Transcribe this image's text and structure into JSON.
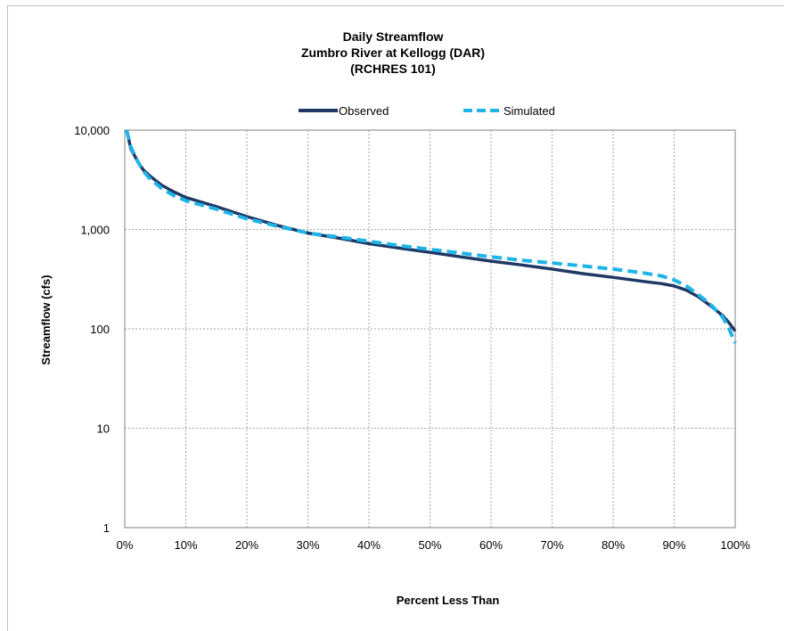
{
  "chart_data": {
    "type": "line",
    "title": [
      "Daily Streamflow",
      "Zumbro River at Kellogg (DAR)",
      "(RCHRES 101)"
    ],
    "xlabel": "Percent Less Than",
    "ylabel": "Streamflow (cfs)",
    "xlim": [
      0,
      100
    ],
    "ylim": [
      1,
      10000
    ],
    "yscale": "log",
    "grid": true,
    "legend_position": "top",
    "x_ticks": [
      "0%",
      "10%",
      "20%",
      "30%",
      "40%",
      "50%",
      "60%",
      "70%",
      "80%",
      "90%",
      "100%"
    ],
    "y_ticks": [
      "1",
      "10",
      "100",
      "1,000",
      "10,000"
    ],
    "y_tick_values": [
      1,
      10,
      100,
      1000,
      10000
    ],
    "series": [
      {
        "name": "Observed",
        "color": "#1f3864",
        "style": "solid",
        "x": [
          0.3,
          1,
          2,
          3,
          4,
          6,
          8,
          10,
          15,
          20,
          25,
          30,
          35,
          40,
          45,
          50,
          55,
          60,
          65,
          70,
          75,
          80,
          85,
          88,
          90,
          92,
          94,
          96,
          98,
          99,
          100
        ],
        "y": [
          10000,
          6500,
          5000,
          4000,
          3500,
          2800,
          2400,
          2100,
          1700,
          1350,
          1100,
          920,
          820,
          720,
          650,
          590,
          530,
          480,
          440,
          400,
          360,
          330,
          300,
          285,
          270,
          245,
          210,
          170,
          135,
          115,
          95
        ]
      },
      {
        "name": "Simulated",
        "color": "#1fb4e8",
        "style": "dashed",
        "x": [
          0.3,
          1,
          2,
          3,
          4,
          6,
          8,
          10,
          15,
          20,
          25,
          30,
          35,
          40,
          45,
          50,
          55,
          60,
          65,
          70,
          75,
          80,
          85,
          88,
          90,
          92,
          94,
          96,
          98,
          99,
          100
        ],
        "y": [
          10000,
          6800,
          5000,
          3900,
          3300,
          2600,
          2200,
          1950,
          1600,
          1280,
          1080,
          920,
          840,
          760,
          690,
          630,
          580,
          530,
          490,
          460,
          430,
          400,
          365,
          340,
          310,
          270,
          220,
          175,
          130,
          100,
          72
        ]
      }
    ]
  }
}
